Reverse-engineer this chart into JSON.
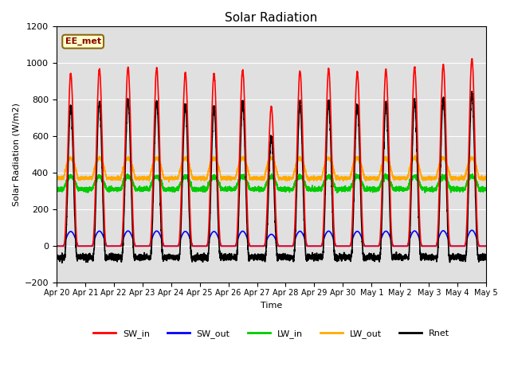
{
  "title": "Solar Radiation",
  "ylabel": "Solar Radiation (W/m2)",
  "xlabel": "Time",
  "ylim": [
    -200,
    1200
  ],
  "yticks": [
    -200,
    0,
    200,
    400,
    600,
    800,
    1000,
    1200
  ],
  "n_days": 15,
  "label_text": "EE_met",
  "bg_color": "#e0e0e0",
  "fig_bg": "#ffffff",
  "series": {
    "SW_in": {
      "color": "#ff0000",
      "lw": 1.2
    },
    "SW_out": {
      "color": "#0000ff",
      "lw": 1.2
    },
    "LW_in": {
      "color": "#00cc00",
      "lw": 1.2
    },
    "LW_out": {
      "color": "#ffaa00",
      "lw": 1.2
    },
    "Rnet": {
      "color": "#000000",
      "lw": 1.2
    }
  },
  "xtick_labels": [
    "Apr 20",
    "Apr 21",
    "Apr 22",
    "Apr 23",
    "Apr 24",
    "Apr 25",
    "Apr 26",
    "Apr 27",
    "Apr 28",
    "Apr 29",
    "Apr 30",
    "May 1",
    "May 2",
    "May 3",
    "May 4",
    "May 5"
  ],
  "xtick_positions": [
    0,
    1,
    2,
    3,
    4,
    5,
    6,
    7,
    8,
    9,
    10,
    11,
    12,
    13,
    14,
    15
  ]
}
